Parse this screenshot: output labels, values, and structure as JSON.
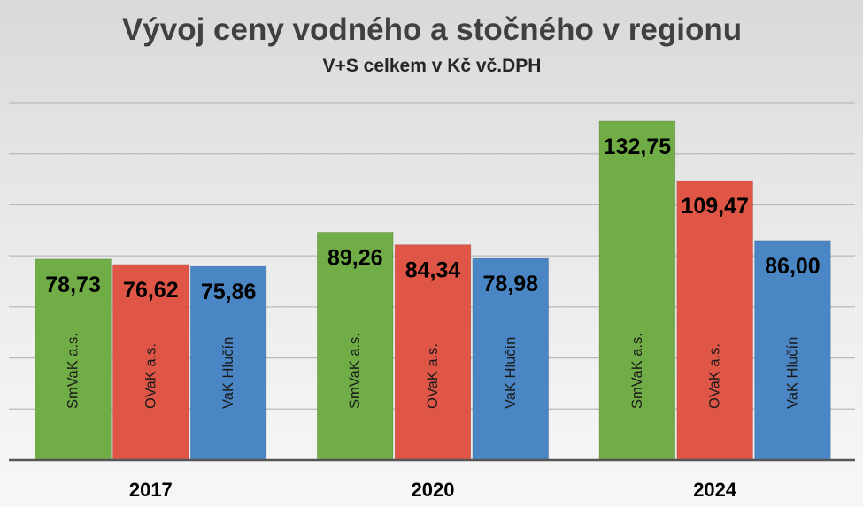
{
  "chart_data": {
    "type": "bar",
    "title": "Vývoj ceny vodného a stočného v regionu",
    "subtitle": "V+S celkem v Kč vč.DPH",
    "xlabel": "",
    "ylabel": "",
    "categories": [
      "2017",
      "2020",
      "2024"
    ],
    "series": [
      {
        "name": "SmVaK a.s.",
        "values": [
          78.73,
          89.26,
          132.75
        ],
        "color": "#70AD47"
      },
      {
        "name": "OVaK a.s.",
        "values": [
          76.62,
          84.34,
          109.47
        ],
        "color": "#E05646"
      },
      {
        "name": "VaK Hlučín",
        "values": [
          75.86,
          78.98,
          86.0
        ],
        "color": "#4A86C4"
      }
    ],
    "ylim": [
      0,
      140
    ],
    "gridline_step": 20,
    "grid": true,
    "y_tick_labels_shown": false,
    "legend": "none",
    "series_names_shown": "inside-bars",
    "colors": {
      "title": "#404040",
      "gridline": "#BABABA",
      "axis": "#555555"
    }
  }
}
